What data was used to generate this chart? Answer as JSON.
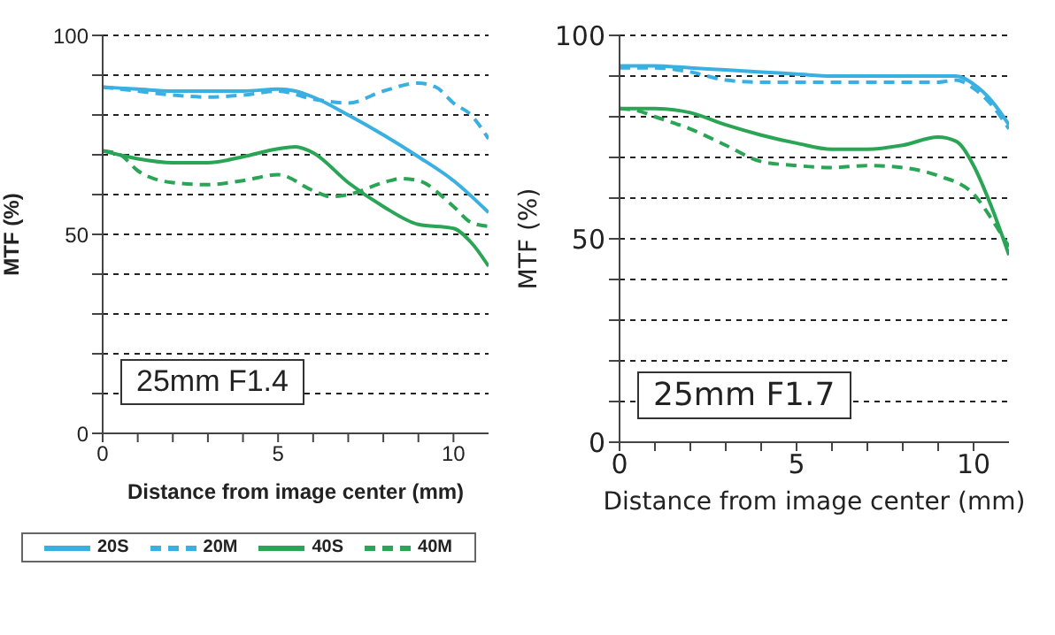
{
  "chart_data": [
    {
      "type": "line",
      "xlabel": "Distance from image center (mm)",
      "ylabel": "MTF (%)",
      "xlim": [
        0,
        11
      ],
      "ylim": [
        0,
        100
      ],
      "xticks": [
        0,
        {
          "value": 1,
          "label": null
        },
        {
          "value": 2,
          "label": null
        },
        {
          "value": 3,
          "label": null
        },
        {
          "value": 4,
          "label": null
        },
        5,
        {
          "value": 6,
          "label": null
        },
        {
          "value": 7,
          "label": null
        },
        {
          "value": 8,
          "label": null
        },
        {
          "value": 9,
          "label": null
        },
        10
      ],
      "yticks": [
        0,
        {
          "value": 10,
          "label": null
        },
        {
          "value": 20,
          "label": null
        },
        {
          "value": 30,
          "label": null
        },
        {
          "value": 40,
          "label": null
        },
        50,
        {
          "value": 60,
          "label": null
        },
        {
          "value": 70,
          "label": null
        },
        {
          "value": 80,
          "label": null
        },
        {
          "value": 90,
          "label": null
        },
        100
      ],
      "grid": "y",
      "legend": "bottom",
      "annotations": [
        "25mm F1.4"
      ],
      "series": [
        {
          "name": "20S",
          "color": "#3ab0e2",
          "line_style": "solid",
          "x": [
            0,
            1,
            2,
            3,
            4,
            5,
            5.5,
            6,
            7,
            8,
            9,
            10,
            11
          ],
          "values": [
            87,
            86.5,
            86,
            86,
            86,
            86.5,
            86,
            84.5,
            80,
            75,
            69.5,
            63.5,
            55.5
          ]
        },
        {
          "name": "20M",
          "color": "#3ab0e2",
          "line_style": "dashed",
          "x": [
            0,
            1,
            2,
            3,
            4,
            5,
            6,
            7,
            8,
            9,
            9.5,
            10,
            10.5,
            11
          ],
          "values": [
            87,
            86,
            85,
            84.5,
            85,
            86,
            84,
            83,
            86,
            88,
            87,
            83,
            80,
            74
          ]
        },
        {
          "name": "40S",
          "color": "#2aa455",
          "line_style": "solid",
          "x": [
            0,
            1,
            2,
            3,
            4,
            5,
            5.5,
            6,
            7,
            8,
            9,
            10,
            10.5,
            11
          ],
          "values": [
            71,
            69,
            68,
            68,
            69.5,
            71.5,
            72,
            70.5,
            63,
            57,
            52.5,
            51.5,
            48,
            42
          ]
        },
        {
          "name": "40M",
          "color": "#2aa455",
          "line_style": "dashed",
          "x": [
            0,
            0.5,
            1,
            2,
            3,
            4,
            5,
            6,
            6.5,
            7,
            8,
            8.5,
            9,
            10,
            10.5,
            11
          ],
          "values": [
            71,
            70,
            66,
            63,
            62.5,
            63.5,
            65,
            61,
            59.5,
            60,
            63,
            64,
            63.5,
            57,
            53,
            52
          ]
        }
      ]
    },
    {
      "type": "line",
      "xlabel": "Distance from image center (mm)",
      "ylabel": "MTF (%)",
      "xlim": [
        0,
        11
      ],
      "ylim": [
        0,
        100
      ],
      "xticks": [
        0,
        {
          "value": 1,
          "label": null
        },
        {
          "value": 2,
          "label": null
        },
        {
          "value": 3,
          "label": null
        },
        {
          "value": 4,
          "label": null
        },
        5,
        {
          "value": 6,
          "label": null
        },
        {
          "value": 7,
          "label": null
        },
        {
          "value": 8,
          "label": null
        },
        {
          "value": 9,
          "label": null
        },
        10
      ],
      "yticks": [
        0,
        {
          "value": 10,
          "label": null
        },
        {
          "value": 20,
          "label": null
        },
        {
          "value": 30,
          "label": null
        },
        {
          "value": 40,
          "label": null
        },
        50,
        {
          "value": 60,
          "label": null
        },
        {
          "value": 70,
          "label": null
        },
        {
          "value": 80,
          "label": null
        },
        {
          "value": 90,
          "label": null
        },
        100
      ],
      "grid": "y",
      "annotations": [
        "25mm F1.7"
      ],
      "series": [
        {
          "color": "#3ab0e2",
          "line_style": "solid",
          "x": [
            0,
            1,
            2,
            3,
            4,
            5,
            6,
            7,
            8,
            9,
            9.5,
            10,
            10.5,
            11
          ],
          "values": [
            92.5,
            92.5,
            92,
            91.5,
            91,
            90.5,
            90,
            90,
            90,
            90,
            90,
            88,
            84,
            78
          ]
        },
        {
          "color": "#3ab0e2",
          "line_style": "dashed",
          "x": [
            0,
            1,
            2,
            3,
            4,
            5,
            6,
            7,
            8,
            9,
            9.5,
            10,
            10.5,
            11
          ],
          "values": [
            92,
            92,
            91,
            89,
            88.5,
            88.5,
            88.5,
            88.5,
            88.5,
            88.5,
            89,
            87,
            83,
            77
          ]
        },
        {
          "color": "#2aa455",
          "line_style": "solid",
          "x": [
            0,
            1,
            2,
            3,
            4,
            5,
            6,
            7,
            8,
            9,
            9.5,
            10,
            10.5,
            11
          ],
          "values": [
            82,
            82,
            81,
            78,
            75.5,
            73.5,
            72,
            72,
            73,
            75,
            74,
            68,
            58,
            46
          ]
        },
        {
          "color": "#2aa455",
          "line_style": "dashed",
          "x": [
            0,
            0.5,
            1,
            2,
            3,
            4,
            5,
            6,
            7,
            8,
            9,
            10,
            10.5,
            11
          ],
          "values": [
            82,
            81.5,
            80,
            77,
            73,
            69,
            68,
            67.5,
            68,
            67.5,
            65.5,
            61,
            55,
            48
          ]
        }
      ]
    }
  ]
}
